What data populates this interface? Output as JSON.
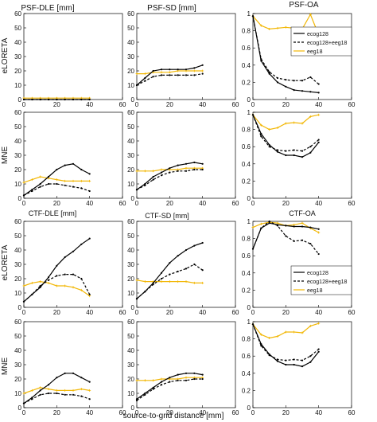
{
  "figure": {
    "column_titles_top": [
      "PSF-DLE [mm]",
      "PSF-SD [mm]",
      "PSF-OA"
    ],
    "column_titles_bottom": [
      "CTF-DLE [mm]",
      "CTF-SD [mm]",
      "CTF-OA"
    ],
    "row_labels": [
      "eLORETA",
      "MNE",
      "eLORETA",
      "MNE"
    ],
    "xlabel": "source-to-grid distance [mm]",
    "xticks": [
      "0",
      "20",
      "40",
      "60"
    ],
    "legend": [
      "ecog128",
      "ecog128+eeg18",
      "eeg18"
    ],
    "colors": {
      "ecog128": "#000000",
      "ecog128_eeg18": "#000000",
      "eeg18": "#f2b705"
    }
  },
  "chart_data": [
    {
      "type": "line",
      "title": "PSF-DLE [mm]",
      "ylabel": "eLORETA",
      "xlim": [
        0,
        60
      ],
      "ylim": [
        0,
        60
      ],
      "yticks": [
        0,
        10,
        20,
        30,
        40,
        50,
        60
      ],
      "x": [
        0,
        5,
        10,
        15,
        20,
        25,
        30,
        35,
        40
      ],
      "series": [
        {
          "name": "ecog128",
          "values": [
            0,
            0,
            0,
            0,
            0,
            0,
            0,
            0,
            0
          ]
        },
        {
          "name": "ecog128+eeg18",
          "values": [
            0,
            0,
            0,
            0,
            0,
            0,
            0,
            0,
            0
          ]
        },
        {
          "name": "eeg18",
          "values": [
            1,
            1,
            1,
            1,
            1,
            1,
            1,
            1,
            1
          ]
        }
      ]
    },
    {
      "type": "line",
      "title": "PSF-SD [mm]",
      "ylabel": "",
      "xlim": [
        0,
        60
      ],
      "ylim": [
        0,
        60
      ],
      "yticks": [
        0,
        10,
        20,
        30,
        40,
        50,
        60
      ],
      "x": [
        0,
        5,
        10,
        15,
        20,
        25,
        30,
        35,
        40
      ],
      "series": [
        {
          "name": "ecog128",
          "values": [
            10,
            15,
            20,
            21,
            21,
            21,
            21,
            22,
            24
          ]
        },
        {
          "name": "ecog128+eeg18",
          "values": [
            10,
            13,
            16,
            17,
            17,
            17,
            17,
            17,
            18
          ]
        },
        {
          "name": "eeg18",
          "values": [
            18,
            18,
            19,
            19,
            19,
            20,
            20,
            20,
            20
          ]
        }
      ]
    },
    {
      "type": "line",
      "title": "PSF-OA",
      "ylabel": "",
      "xlim": [
        0,
        60
      ],
      "ylim": [
        0,
        1
      ],
      "yticks": [
        0,
        0.2,
        0.4,
        0.6,
        0.8,
        1
      ],
      "x": [
        0,
        5,
        10,
        15,
        20,
        25,
        30,
        35,
        40
      ],
      "legend": "top-right",
      "series": [
        {
          "name": "ecog128",
          "values": [
            0.97,
            0.45,
            0.3,
            0.2,
            0.15,
            0.11,
            0.1,
            0.09,
            0.08
          ]
        },
        {
          "name": "ecog128+eeg18",
          "values": [
            0.97,
            0.47,
            0.32,
            0.25,
            0.23,
            0.22,
            0.22,
            0.26,
            0.18
          ]
        },
        {
          "name": "eeg18",
          "values": [
            0.97,
            0.86,
            0.82,
            0.83,
            0.84,
            0.83,
            0.82,
            0.99,
            0.75
          ]
        }
      ]
    },
    {
      "type": "line",
      "title": "",
      "ylabel": "MNE",
      "xlim": [
        0,
        60
      ],
      "ylim": [
        0,
        60
      ],
      "yticks": [
        0,
        10,
        20,
        30,
        40,
        50,
        60
      ],
      "x": [
        0,
        5,
        10,
        15,
        20,
        25,
        30,
        35,
        40
      ],
      "series": [
        {
          "name": "ecog128",
          "values": [
            2,
            6,
            10,
            15,
            20,
            23,
            24,
            20,
            17
          ]
        },
        {
          "name": "ecog128+eeg18",
          "values": [
            2,
            5,
            8,
            10,
            10,
            9,
            8,
            7,
            5
          ]
        },
        {
          "name": "eeg18",
          "values": [
            11,
            13,
            15,
            14,
            13,
            12,
            12,
            12,
            12
          ]
        }
      ]
    },
    {
      "type": "line",
      "title": "",
      "ylabel": "",
      "xlim": [
        0,
        60
      ],
      "ylim": [
        0,
        60
      ],
      "yticks": [
        0,
        10,
        20,
        30,
        40,
        50,
        60
      ],
      "x": [
        0,
        5,
        10,
        15,
        20,
        25,
        30,
        35,
        40
      ],
      "series": [
        {
          "name": "ecog128",
          "values": [
            6,
            10,
            15,
            18,
            21,
            23,
            24,
            25,
            24
          ]
        },
        {
          "name": "ecog128+eeg18",
          "values": [
            6,
            9,
            13,
            16,
            18,
            19,
            19,
            20,
            20
          ]
        },
        {
          "name": "eeg18",
          "values": [
            19,
            19,
            19,
            20,
            20,
            20,
            21,
            21,
            21
          ]
        }
      ]
    },
    {
      "type": "line",
      "title": "",
      "ylabel": "",
      "xlim": [
        0,
        60
      ],
      "ylim": [
        0,
        1
      ],
      "yticks": [
        0,
        0.2,
        0.4,
        0.6,
        0.8,
        1
      ],
      "x": [
        0,
        5,
        10,
        15,
        20,
        25,
        30,
        35,
        40
      ],
      "series": [
        {
          "name": "ecog128",
          "values": [
            0.97,
            0.75,
            0.62,
            0.54,
            0.5,
            0.5,
            0.48,
            0.53,
            0.65
          ]
        },
        {
          "name": "ecog128+eeg18",
          "values": [
            0.97,
            0.72,
            0.6,
            0.56,
            0.55,
            0.56,
            0.55,
            0.6,
            0.68
          ]
        },
        {
          "name": "eeg18",
          "values": [
            0.97,
            0.85,
            0.8,
            0.82,
            0.87,
            0.88,
            0.87,
            0.95,
            0.97
          ]
        }
      ]
    },
    {
      "type": "line",
      "title": "CTF-DLE [mm]",
      "ylabel": "eLORETA",
      "xlim": [
        0,
        60
      ],
      "ylim": [
        0,
        60
      ],
      "yticks": [
        0,
        10,
        20,
        30,
        40,
        50,
        60
      ],
      "x": [
        0,
        5,
        10,
        15,
        20,
        25,
        30,
        35,
        40
      ],
      "series": [
        {
          "name": "ecog128",
          "values": [
            4,
            9,
            14,
            21,
            29,
            35,
            39,
            44,
            48
          ]
        },
        {
          "name": "ecog128+eeg18",
          "values": [
            4,
            9,
            15,
            19,
            22,
            23,
            23,
            20,
            9
          ]
        },
        {
          "name": "eeg18",
          "values": [
            15,
            17,
            18,
            17,
            15,
            15,
            14,
            12,
            8
          ]
        }
      ]
    },
    {
      "type": "line",
      "title": "CTF-SD [mm]",
      "ylabel": "",
      "xlim": [
        0,
        60
      ],
      "ylim": [
        0,
        60
      ],
      "yticks": [
        0,
        10,
        20,
        30,
        40,
        50,
        60
      ],
      "x": [
        0,
        5,
        10,
        15,
        20,
        25,
        30,
        35,
        40
      ],
      "series": [
        {
          "name": "ecog128",
          "values": [
            6,
            11,
            17,
            24,
            31,
            36,
            40,
            43,
            45
          ]
        },
        {
          "name": "ecog128+eeg18",
          "values": [
            6,
            11,
            16,
            20,
            23,
            25,
            27,
            30,
            26
          ]
        },
        {
          "name": "eeg18",
          "values": [
            19,
            18,
            18,
            18,
            18,
            18,
            18,
            17,
            17
          ]
        }
      ]
    },
    {
      "type": "line",
      "title": "CTF-OA",
      "ylabel": "",
      "xlim": [
        0,
        60
      ],
      "ylim": [
        0,
        1
      ],
      "yticks": [
        0,
        0.2,
        0.4,
        0.6,
        0.8,
        1
      ],
      "x": [
        0,
        5,
        10,
        15,
        20,
        25,
        30,
        35,
        40
      ],
      "legend": "bottom-right",
      "series": [
        {
          "name": "ecog128",
          "values": [
            0.68,
            0.92,
            0.98,
            0.96,
            0.95,
            0.94,
            0.94,
            0.93,
            0.91
          ]
        },
        {
          "name": "ecog128+eeg18",
          "values": [
            0.68,
            0.92,
            1.0,
            0.95,
            0.83,
            0.77,
            0.78,
            0.74,
            0.62
          ]
        },
        {
          "name": "eeg18",
          "values": [
            0.93,
            0.97,
            0.99,
            0.98,
            0.95,
            0.96,
            0.98,
            0.92,
            0.87
          ]
        }
      ]
    },
    {
      "type": "line",
      "title": "",
      "ylabel": "MNE",
      "xlim": [
        0,
        60
      ],
      "ylim": [
        0,
        60
      ],
      "yticks": [
        0,
        10,
        20,
        30,
        40,
        50,
        60
      ],
      "x": [
        0,
        5,
        10,
        15,
        20,
        25,
        30,
        35,
        40
      ],
      "series": [
        {
          "name": "ecog128",
          "values": [
            3,
            7,
            12,
            16,
            21,
            24,
            24,
            21,
            18
          ]
        },
        {
          "name": "ecog128+eeg18",
          "values": [
            3,
            6,
            9,
            10,
            10,
            9,
            9,
            8,
            6
          ]
        },
        {
          "name": "eeg18",
          "values": [
            10,
            12,
            14,
            13,
            12,
            12,
            12,
            13,
            12
          ]
        }
      ]
    },
    {
      "type": "line",
      "title": "",
      "ylabel": "",
      "xlim": [
        0,
        60
      ],
      "ylim": [
        0,
        60
      ],
      "yticks": [
        0,
        10,
        20,
        30,
        40,
        50,
        60
      ],
      "x": [
        0,
        5,
        10,
        15,
        20,
        25,
        30,
        35,
        40
      ],
      "series": [
        {
          "name": "ecog128",
          "values": [
            6,
            10,
            14,
            18,
            21,
            23,
            24,
            24,
            23
          ]
        },
        {
          "name": "ecog128+eeg18",
          "values": [
            5,
            9,
            13,
            16,
            18,
            19,
            19,
            20,
            20
          ]
        },
        {
          "name": "eeg18",
          "values": [
            19,
            19,
            19,
            20,
            20,
            20,
            21,
            21,
            21
          ]
        }
      ]
    },
    {
      "type": "line",
      "title": "",
      "ylabel": "",
      "xlim": [
        0,
        60
      ],
      "ylim": [
        0,
        1
      ],
      "yticks": [
        0,
        0.2,
        0.4,
        0.6,
        0.8,
        1
      ],
      "x": [
        0,
        5,
        10,
        15,
        20,
        25,
        30,
        35,
        40
      ],
      "series": [
        {
          "name": "ecog128",
          "values": [
            0.97,
            0.74,
            0.62,
            0.54,
            0.5,
            0.5,
            0.48,
            0.53,
            0.65
          ]
        },
        {
          "name": "ecog128+eeg18",
          "values": [
            0.97,
            0.72,
            0.61,
            0.56,
            0.55,
            0.56,
            0.55,
            0.6,
            0.68
          ]
        },
        {
          "name": "eeg18",
          "values": [
            0.97,
            0.85,
            0.81,
            0.83,
            0.88,
            0.88,
            0.87,
            0.95,
            0.98
          ]
        }
      ]
    }
  ]
}
